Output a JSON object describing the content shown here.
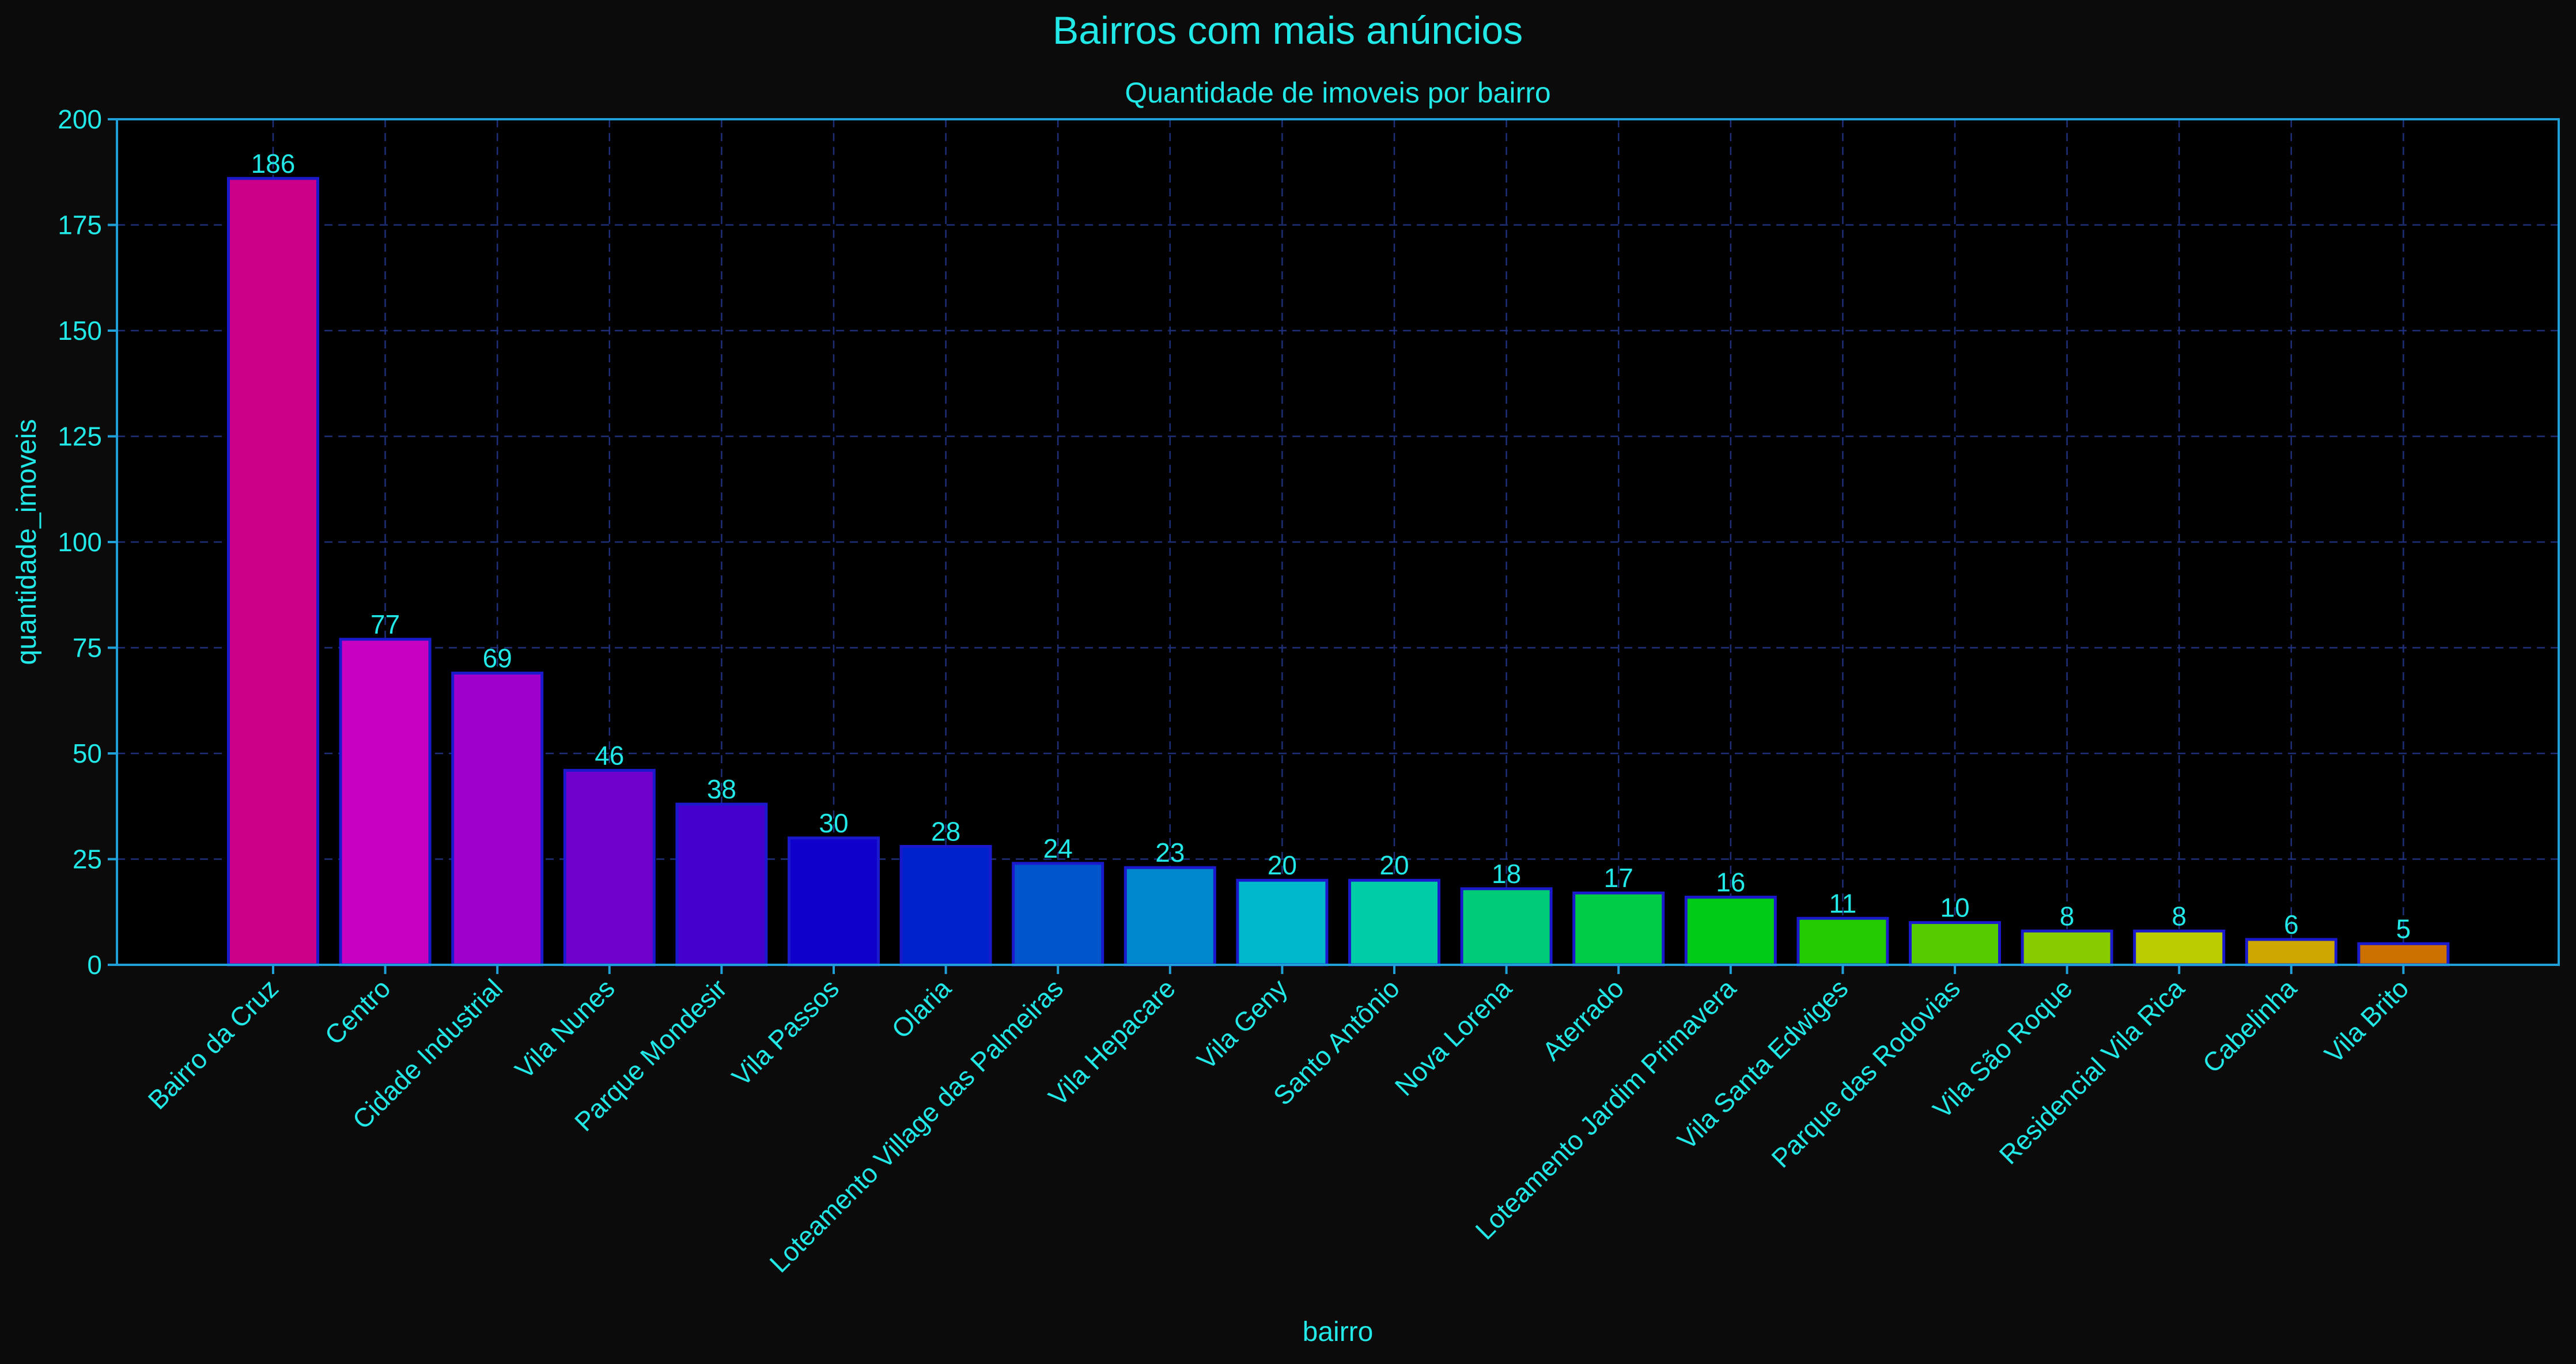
{
  "chart_data": {
    "type": "bar",
    "title": "Bairros com mais anúncios",
    "subtitle": "Quantidade de imoveis por bairro",
    "xlabel": "bairro",
    "ylabel": "quantidade_imoveis",
    "ylim": [
      0,
      200
    ],
    "yticks": [
      0,
      25,
      50,
      75,
      100,
      125,
      150,
      175,
      200
    ],
    "grid": true,
    "categories": [
      "Bairro da Cruz",
      "Centro",
      "Cidade Industrial",
      "Vila Nunes",
      "Parque Mondesir",
      "Vila Passos",
      "Olaria",
      "Loteamento Village das Palmeiras",
      "Vila Hepacare",
      "Vila Geny",
      "Santo Antônio",
      "Nova Lorena",
      "Aterrado",
      "Loteamento Jardim Primavera",
      "Vila Santa Edwiges",
      "Parque das Rodovias",
      "Vila São Roque",
      "Residencial Vila Rica",
      "Cabelinha",
      "Vila Brito"
    ],
    "values": [
      186,
      77,
      69,
      46,
      38,
      30,
      28,
      24,
      23,
      20,
      20,
      18,
      17,
      16,
      11,
      10,
      8,
      8,
      6,
      5
    ],
    "colors": [
      "#cc0088",
      "#c800c0",
      "#a000cc",
      "#7000cc",
      "#4400cc",
      "#1000cc",
      "#0022cc",
      "#0055cc",
      "#0088cc",
      "#00b8cc",
      "#00cca8",
      "#00cc78",
      "#00cc48",
      "#00cc18",
      "#22cc00",
      "#55cc00",
      "#88cc00",
      "#bbcc00",
      "#cca800",
      "#cc7000"
    ],
    "style": {
      "background": "#0b0b0b",
      "plot_background": "#000000",
      "text_color": "#22e8e8",
      "axis_color": "#1fa0d8",
      "grid_color": "#1e2f7a",
      "bar_edge_color": "#1a1acc"
    }
  }
}
